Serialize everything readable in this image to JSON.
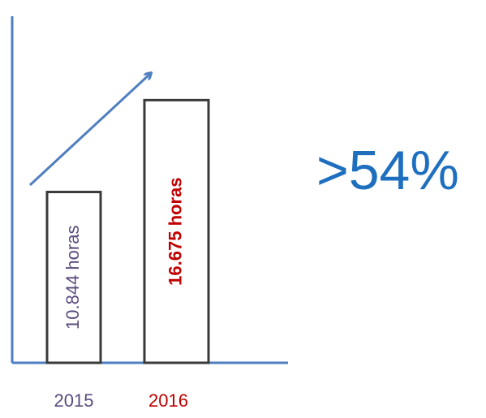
{
  "chart_data": {
    "type": "bar",
    "categories": [
      "2015",
      "2016"
    ],
    "values": [
      10844,
      16675
    ],
    "value_labels": [
      "10.844 horas",
      "16.675 horas"
    ],
    "label_colors": [
      "#5b4a7c",
      "#c00000"
    ],
    "color": "#ffffff",
    "edge_color": "#3a3a3a",
    "axis_color": "#4f7fc0",
    "ylim": [
      0,
      22000
    ],
    "annotation": ">54%",
    "annotation_color": "#1f6fbf"
  }
}
